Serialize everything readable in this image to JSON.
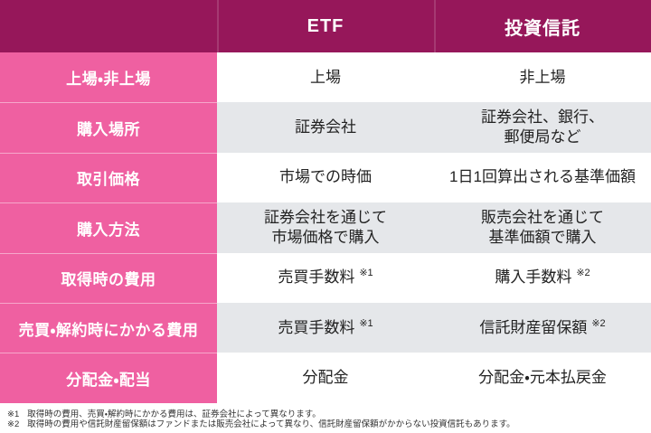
{
  "table": {
    "header": {
      "corner": "",
      "etf": "ETF",
      "toshin": "投資信託"
    },
    "rows": [
      {
        "label": "上場・非上場",
        "etf": "上場",
        "toshin": "非上場"
      },
      {
        "label": "購入場所",
        "etf": "証券会社",
        "toshin": "証券会社、銀行、\n郵便局など"
      },
      {
        "label": "取引価格",
        "etf": "市場での時価",
        "toshin": "1日1回算出される基準価額"
      },
      {
        "label": "購入方法",
        "etf": "証券会社を通じて\n市場価格で購入",
        "toshin": "販売会社を通じて\n基準価額で購入"
      },
      {
        "label": "取得時の費用",
        "etf": "売買手数料",
        "etf_note": "※1",
        "toshin": "購入手数料",
        "toshin_note": "※2"
      },
      {
        "label": "売買・解約時にかかる費用",
        "etf": "売買手数料",
        "etf_note": "※1",
        "toshin": "信託財産留保額",
        "toshin_note": "※2"
      },
      {
        "label": "分配金・配当",
        "etf": "分配金",
        "toshin": "分配金・元本払戻金"
      }
    ]
  },
  "footnotes": [
    {
      "marker": "※1",
      "text": "取得時の費用、売買・解約時にかかる費用は、証券会社によって異なります。"
    },
    {
      "marker": "※2",
      "text": "取得時の費用や信託財産留保額はファンドまたは販売会社によって異なり、信託財産留保額がかからない投資信託もあります。"
    }
  ],
  "colors": {
    "header_bg": "#96175A",
    "label_column_bg": "#EF60A1",
    "alt_row_bg": "#E5E7EA",
    "row_bg": "#FFFFFF",
    "header_text": "#FFFFFF",
    "body_text": "#222222",
    "footnote_text": "#333333"
  },
  "chart_data": {
    "type": "table",
    "title": "",
    "columns": [
      "",
      "ETF",
      "投資信託"
    ],
    "rows": [
      [
        "上場・非上場",
        "上場",
        "非上場"
      ],
      [
        "購入場所",
        "証券会社",
        "証券会社、銀行、郵便局など"
      ],
      [
        "取引価格",
        "市場での時価",
        "1日1回算出される基準価額"
      ],
      [
        "購入方法",
        "証券会社を通じて市場価格で購入",
        "販売会社を通じて基準価額で購入"
      ],
      [
        "取得時の費用",
        "売買手数料 ※1",
        "購入手数料 ※2"
      ],
      [
        "売買・解約時にかかる費用",
        "売買手数料 ※1",
        "信託財産留保額 ※2"
      ],
      [
        "分配金・配当",
        "分配金",
        "分配金・元本払戻金"
      ]
    ],
    "footnotes": [
      "※1 取得時の費用、売買・解約時にかかる費用は、証券会社によって異なります。",
      "※2 取得時の費用や信託財産留保額はファンドまたは販売会社によって異なり、信託財産留保額がかからない投資信託もあります。"
    ],
    "layout_hints": {
      "header_row": true,
      "label_column": true,
      "zebra_striping": true
    }
  }
}
